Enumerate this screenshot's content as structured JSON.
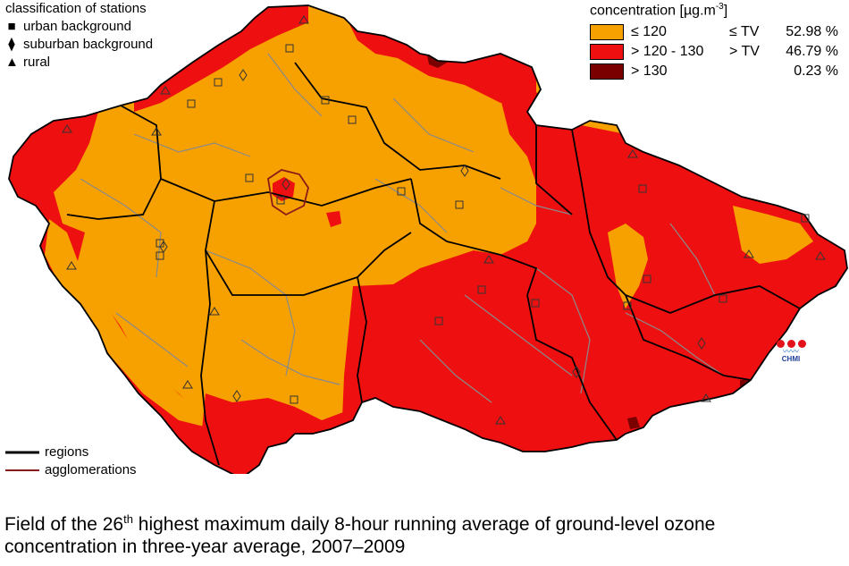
{
  "stations_legend": {
    "title": "classification of stations",
    "items": [
      {
        "symbol": "■",
        "label": "urban background"
      },
      {
        "symbol": "⧫",
        "label": "suburban background"
      },
      {
        "symbol": "▲",
        "label": "rural"
      }
    ]
  },
  "concentration_legend": {
    "title": "concentration [µg.m",
    "title_sup": "-3",
    "title_end": "]",
    "classes": [
      {
        "label": "≤ 120",
        "tv": "≤ TV",
        "percent": "52.98 %",
        "color": "#f7a100"
      },
      {
        "label": "> 120 - 130",
        "tv": "> TV",
        "percent": "46.79 %",
        "color": "#ee1010"
      },
      {
        "label": "> 130",
        "tv": "",
        "percent": "0.23 %",
        "color": "#7a0000"
      }
    ]
  },
  "lines_legend": {
    "regions": "regions",
    "agglomerations": "agglomerations",
    "regions_color": "#000000",
    "agglomerations_color": "#8b1a1a"
  },
  "logo": {
    "text": "CHMI"
  },
  "caption": {
    "part1": "Field of the 26",
    "sup": "th",
    "part2": " highest maximum daily 8-hour running average of ground-level ozone",
    "line2": "concentration in three-year average, 2007–2009"
  },
  "colors": {
    "low": "#f7a100",
    "mid": "#ee1010",
    "high": "#7a0000",
    "district_border": "#8a8a8a",
    "region_border": "#000000"
  }
}
